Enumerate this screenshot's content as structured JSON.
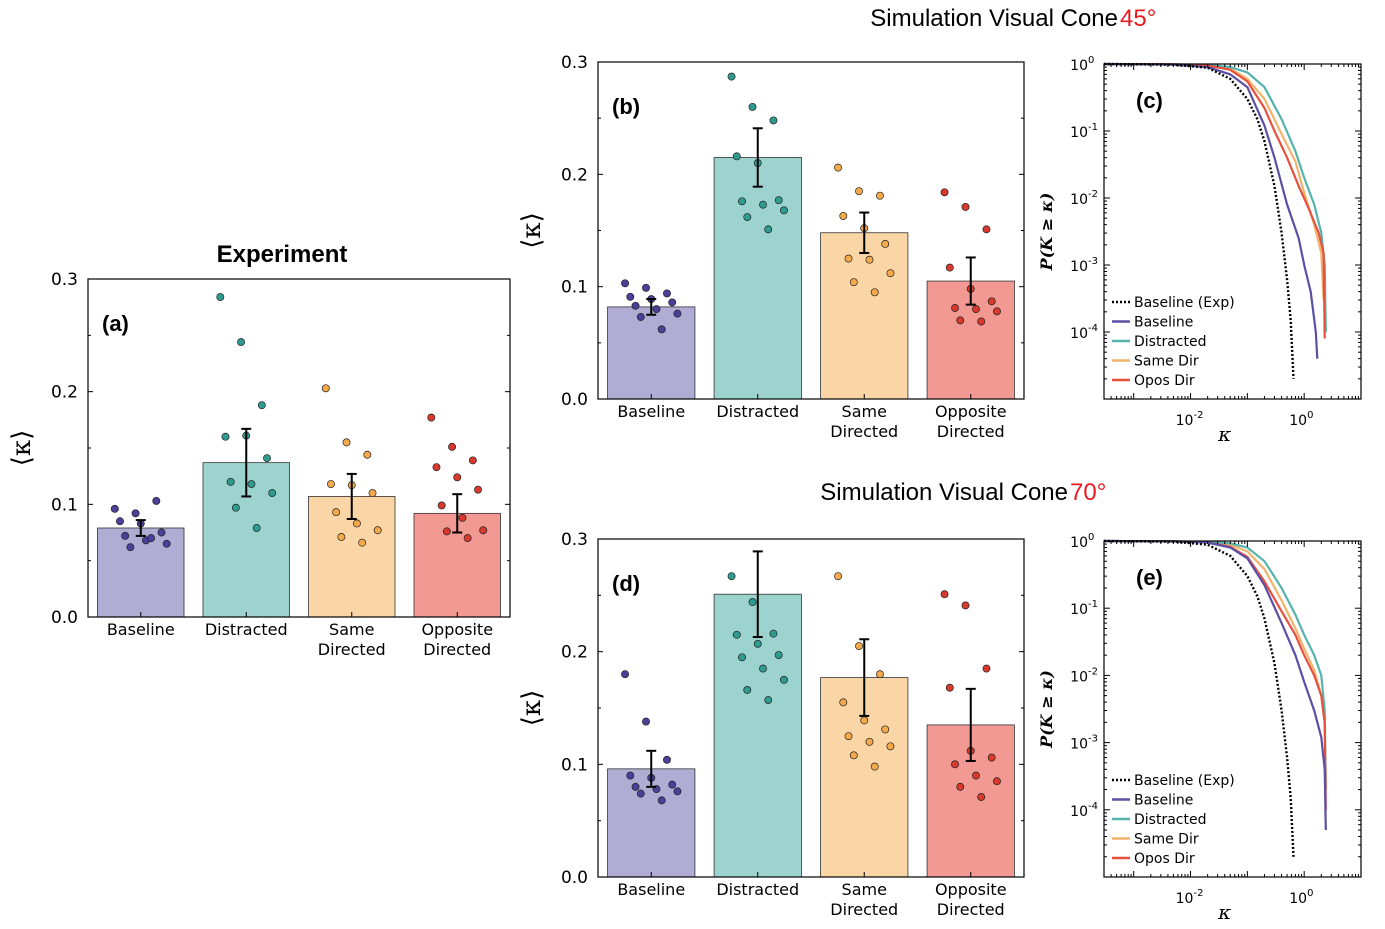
{
  "titles": {
    "experiment": "Experiment",
    "sim45_prefix": "Simulation Visual Cone ",
    "sim45_angle": "45°",
    "sim70_prefix": "Simulation Visual Cone ",
    "sim70_angle": "70°"
  },
  "colors": {
    "baseline": "#7b74b8",
    "distracted": "#5cb5ad",
    "same": "#f7bb6a",
    "opposite": "#e8554a",
    "baseline_exp": "#000000",
    "baseline_line": "#5b4fa6",
    "distracted_line": "#55b3ad",
    "same_line": "#f4b36b",
    "opos_line": "#e8503e",
    "red_text": "#e8191f"
  },
  "chart_data": [
    {
      "id": "a",
      "type": "bar",
      "panel_label": "(a)",
      "title": "Experiment",
      "ylabel": "⟨κ⟩",
      "ylim": [
        0,
        0.3
      ],
      "yticks": [
        "0.0",
        "0.1",
        "0.2",
        "0.3"
      ],
      "categories": [
        "Baseline",
        "Distracted",
        "Same\nDirected",
        "Opposite\nDirected"
      ],
      "values": [
        0.079,
        0.137,
        0.107,
        0.092
      ],
      "errors": [
        0.007,
        0.03,
        0.02,
        0.017
      ],
      "points": [
        [
          0.096,
          0.092,
          0.103,
          0.085,
          0.083,
          0.075,
          0.072,
          0.068,
          0.065,
          0.062,
          0.07
        ],
        [
          0.284,
          0.244,
          0.188,
          0.16,
          0.161,
          0.141,
          0.12,
          0.118,
          0.11,
          0.097,
          0.079
        ],
        [
          0.203,
          0.155,
          0.144,
          0.118,
          0.117,
          0.11,
          0.093,
          0.083,
          0.077,
          0.071,
          0.066
        ],
        [
          0.177,
          0.151,
          0.139,
          0.133,
          0.124,
          0.113,
          0.099,
          0.088,
          0.077,
          0.076,
          0.07
        ]
      ]
    },
    {
      "id": "b",
      "type": "bar",
      "panel_label": "(b)",
      "ylabel": "⟨κ⟩",
      "ylim": [
        0,
        0.3
      ],
      "yticks": [
        "0.0",
        "0.1",
        "0.2",
        "0.3"
      ],
      "categories": [
        "Baseline",
        "Distracted",
        "Same\nDirected",
        "Opposite\nDirected"
      ],
      "values": [
        0.082,
        0.215,
        0.148,
        0.105
      ],
      "errors": [
        0.007,
        0.026,
        0.018,
        0.021
      ],
      "points": [
        [
          0.103,
          0.099,
          0.094,
          0.091,
          0.089,
          0.086,
          0.083,
          0.08,
          0.076,
          0.073,
          0.062
        ],
        [
          0.287,
          0.26,
          0.248,
          0.216,
          0.21,
          0.177,
          0.176,
          0.173,
          0.168,
          0.162,
          0.151
        ],
        [
          0.206,
          0.185,
          0.181,
          0.163,
          0.152,
          0.138,
          0.125,
          0.124,
          0.112,
          0.104,
          0.095
        ],
        [
          0.184,
          0.171,
          0.151,
          0.117,
          0.098,
          0.087,
          0.081,
          0.08,
          0.078,
          0.07,
          0.069
        ]
      ]
    },
    {
      "id": "d",
      "type": "bar",
      "panel_label": "(d)",
      "ylabel": "⟨κ⟩",
      "ylim": [
        0,
        0.3
      ],
      "yticks": [
        "0.0",
        "0.1",
        "0.2",
        "0.3"
      ],
      "categories": [
        "Baseline",
        "Distracted",
        "Same\nDirected",
        "Opposite\nDirected"
      ],
      "values": [
        0.096,
        0.251,
        0.177,
        0.135
      ],
      "errors": [
        0.016,
        0.038,
        0.034,
        0.032
      ],
      "points": [
        [
          0.18,
          0.138,
          0.104,
          0.09,
          0.088,
          0.082,
          0.08,
          0.078,
          0.076,
          0.074,
          0.068
        ],
        [
          0.267,
          0.244,
          0.216,
          0.215,
          0.207,
          0.197,
          0.195,
          0.185,
          0.175,
          0.166,
          0.157
        ],
        [
          0.267,
          0.205,
          0.18,
          0.155,
          0.139,
          0.131,
          0.125,
          0.12,
          0.116,
          0.108,
          0.098
        ],
        [
          0.251,
          0.241,
          0.185,
          0.168,
          0.112,
          0.106,
          0.1,
          0.09,
          0.085,
          0.08,
          0.071
        ]
      ]
    },
    {
      "id": "c",
      "type": "line",
      "panel_label": "(c)",
      "xlabel": "κ",
      "ylabel": "P(K ≥ κ)",
      "xscale": "log",
      "yscale": "log",
      "xlim": [
        0.0003,
        10
      ],
      "ylim": [
        1e-05,
        1
      ],
      "xticks": [
        "10",
        "10"
      ],
      "xtick_exps": [
        "-2",
        "0"
      ],
      "yticks": [
        "10",
        "10",
        "10",
        "10",
        "10"
      ],
      "ytick_exps": [
        "0",
        "-1",
        "-2",
        "-3",
        "-4"
      ],
      "legend_position": "lower-left",
      "series": [
        {
          "name": "Baseline (Exp)",
          "style": "dotted",
          "x": [
            0.0003,
            0.005,
            0.02,
            0.05,
            0.1,
            0.15,
            0.2,
            0.3,
            0.4,
            0.5,
            0.58,
            0.65
          ],
          "y": [
            1,
            0.98,
            0.88,
            0.6,
            0.3,
            0.15,
            0.07,
            0.015,
            0.003,
            0.0006,
            0.00015,
            2e-05
          ]
        },
        {
          "name": "Baseline",
          "x": [
            0.0003,
            0.005,
            0.02,
            0.05,
            0.1,
            0.2,
            0.3,
            0.5,
            0.8,
            1.0,
            1.3,
            1.6,
            1.7
          ],
          "y": [
            1,
            0.98,
            0.9,
            0.7,
            0.45,
            0.12,
            0.04,
            0.008,
            0.0025,
            0.001,
            0.0004,
            0.0001,
            4e-05
          ]
        },
        {
          "name": "Distracted",
          "x": [
            0.0003,
            0.005,
            0.02,
            0.05,
            0.1,
            0.2,
            0.4,
            0.7,
            1.0,
            1.5,
            2.0,
            2.3,
            2.4
          ],
          "y": [
            1,
            0.99,
            0.97,
            0.9,
            0.75,
            0.45,
            0.15,
            0.05,
            0.02,
            0.008,
            0.003,
            0.001,
            0.0001
          ]
        },
        {
          "name": "Same Dir",
          "x": [
            0.0003,
            0.005,
            0.02,
            0.05,
            0.1,
            0.2,
            0.4,
            0.7,
            1.0,
            1.5,
            2.0,
            2.2
          ],
          "y": [
            1,
            0.99,
            0.96,
            0.85,
            0.6,
            0.3,
            0.09,
            0.035,
            0.012,
            0.004,
            0.0015,
            0.0003
          ]
        },
        {
          "name": "Opos Dir",
          "x": [
            0.0003,
            0.005,
            0.02,
            0.05,
            0.1,
            0.2,
            0.3,
            0.5,
            0.8,
            1.2,
            1.8,
            2.2,
            2.3
          ],
          "y": [
            1,
            0.99,
            0.95,
            0.82,
            0.55,
            0.22,
            0.1,
            0.04,
            0.015,
            0.007,
            0.003,
            0.0015,
            8e-05
          ]
        }
      ]
    },
    {
      "id": "e",
      "type": "line",
      "panel_label": "(e)",
      "xlabel": "κ",
      "ylabel": "P(K ≥ κ)",
      "xscale": "log",
      "yscale": "log",
      "xlim": [
        0.0003,
        10
      ],
      "ylim": [
        1e-05,
        1
      ],
      "xticks": [
        "10",
        "10"
      ],
      "xtick_exps": [
        "-2",
        "0"
      ],
      "yticks": [
        "10",
        "10",
        "10",
        "10",
        "10"
      ],
      "ytick_exps": [
        "0",
        "-1",
        "-2",
        "-3",
        "-4"
      ],
      "legend_position": "lower-left",
      "series": [
        {
          "name": "Baseline (Exp)",
          "style": "dotted",
          "x": [
            0.0003,
            0.005,
            0.02,
            0.05,
            0.1,
            0.15,
            0.2,
            0.3,
            0.4,
            0.5,
            0.58,
            0.65
          ],
          "y": [
            1,
            0.98,
            0.88,
            0.6,
            0.3,
            0.15,
            0.07,
            0.015,
            0.003,
            0.0006,
            0.00015,
            2e-05
          ]
        },
        {
          "name": "Baseline",
          "x": [
            0.0003,
            0.005,
            0.02,
            0.05,
            0.1,
            0.2,
            0.4,
            0.7,
            1.0,
            1.5,
            2.0,
            2.3,
            2.4
          ],
          "y": [
            1,
            0.99,
            0.95,
            0.8,
            0.55,
            0.22,
            0.06,
            0.02,
            0.008,
            0.003,
            0.0012,
            0.0004,
            5e-05
          ]
        },
        {
          "name": "Distracted",
          "x": [
            0.0003,
            0.005,
            0.02,
            0.05,
            0.1,
            0.2,
            0.4,
            0.7,
            1.0,
            1.5,
            2.0,
            2.3,
            2.4
          ],
          "y": [
            1,
            0.99,
            0.97,
            0.92,
            0.8,
            0.5,
            0.2,
            0.08,
            0.04,
            0.02,
            0.01,
            0.003,
            0.0002
          ]
        },
        {
          "name": "Same Dir",
          "x": [
            0.0003,
            0.005,
            0.02,
            0.05,
            0.1,
            0.2,
            0.4,
            0.7,
            1.0,
            1.5,
            2.0,
            2.3,
            2.4
          ],
          "y": [
            1,
            0.99,
            0.96,
            0.88,
            0.7,
            0.38,
            0.13,
            0.05,
            0.025,
            0.012,
            0.005,
            0.002,
            0.0002
          ]
        },
        {
          "name": "Opos Dir",
          "x": [
            0.0003,
            0.005,
            0.02,
            0.05,
            0.1,
            0.2,
            0.4,
            0.7,
            1.0,
            1.5,
            2.0,
            2.3,
            2.4
          ],
          "y": [
            1,
            0.99,
            0.95,
            0.82,
            0.58,
            0.25,
            0.09,
            0.04,
            0.02,
            0.01,
            0.005,
            0.002,
            0.0001
          ]
        }
      ]
    }
  ]
}
